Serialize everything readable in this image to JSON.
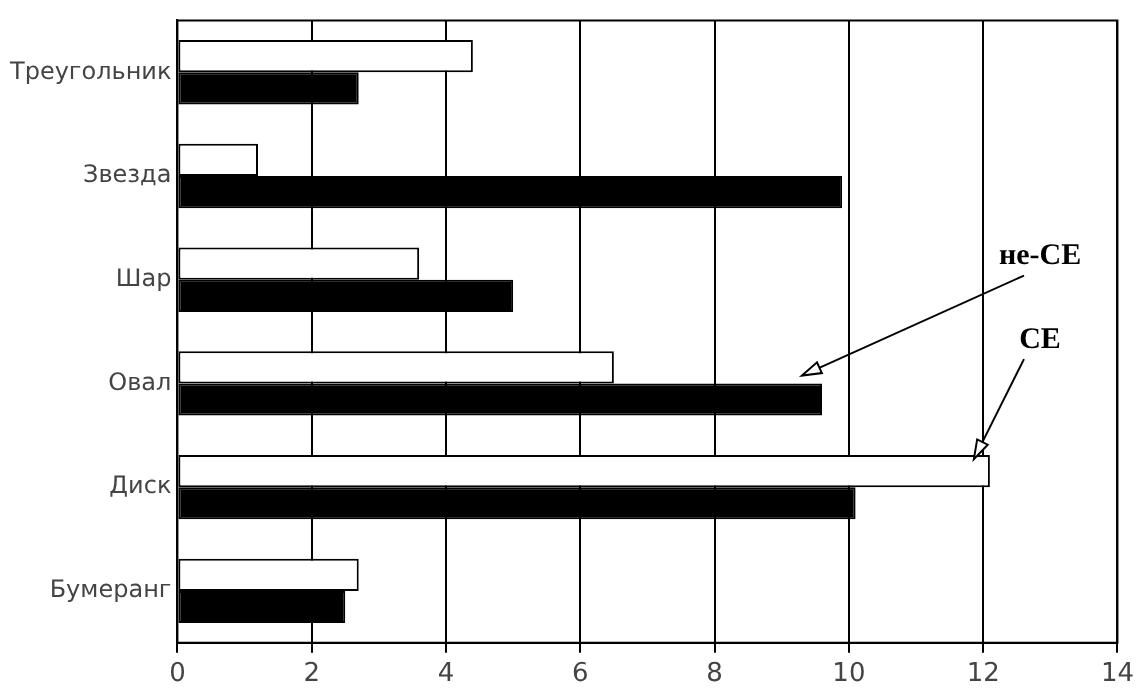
{
  "chart_data": {
    "type": "bar",
    "orientation": "horizontal",
    "categories": [
      "Треугольник",
      "Звезда",
      "Шар",
      "Овал",
      "Диск",
      "Бумеранг"
    ],
    "series": [
      {
        "name": "СЕ",
        "color": "#ffffff",
        "values": [
          4.4,
          1.2,
          3.6,
          6.5,
          12.1,
          2.7
        ]
      },
      {
        "name": "не-СЕ",
        "color": "#000000",
        "values": [
          2.7,
          9.9,
          5.0,
          9.6,
          10.1,
          2.5
        ]
      }
    ],
    "xlim": [
      0,
      14
    ],
    "xticks": [
      0,
      2,
      4,
      6,
      8,
      10,
      12,
      14
    ],
    "grid": "x",
    "legend": false
  }
}
